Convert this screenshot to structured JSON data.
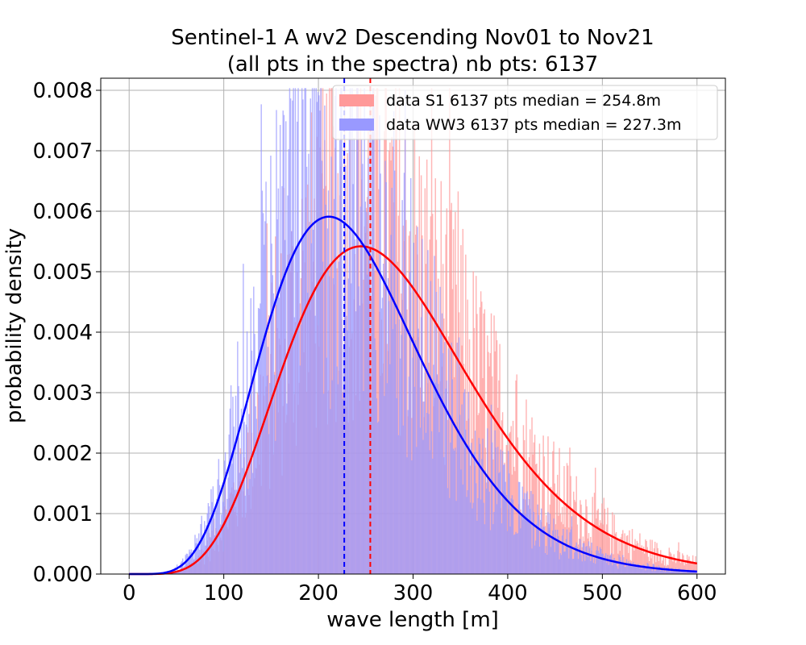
{
  "chart_data": {
    "type": "histogram",
    "title_line1": "Sentinel-1 A wv2 Descending Nov01 to Nov21",
    "title_line2": "(all pts in the spectra) nb pts: 6137",
    "xlabel": "wave length [m]",
    "ylabel": "probability density",
    "xlim": [
      -30,
      630
    ],
    "ylim": [
      0,
      0.0082
    ],
    "xticks": [
      0,
      100,
      200,
      300,
      400,
      500,
      600
    ],
    "xtick_labels": [
      "0",
      "100",
      "200",
      "300",
      "400",
      "500",
      "600"
    ],
    "yticks": [
      0,
      0.001,
      0.002,
      0.003,
      0.004,
      0.005,
      0.006,
      0.007,
      0.008
    ],
    "ytick_labels": [
      "0.000",
      "0.001",
      "0.002",
      "0.003",
      "0.004",
      "0.005",
      "0.006",
      "0.007",
      "0.008"
    ],
    "grid": true,
    "legend_position": "top-right",
    "series": [
      {
        "name": "data S1 6137 pts median = 254.8m",
        "color": "#ff0000",
        "hist_color": "#ff9999",
        "median": 254.8,
        "fit_peak_x": 245,
        "fit_peak_density": 0.00542
      },
      {
        "name": "data WW3 6137 pts median = 227.3m",
        "color": "#0000ff",
        "hist_color": "#9999ff",
        "median": 227.3,
        "fit_peak_x": 211,
        "fit_peak_density": 0.00591
      }
    ],
    "fit_curve_range": [
      0,
      600
    ]
  }
}
